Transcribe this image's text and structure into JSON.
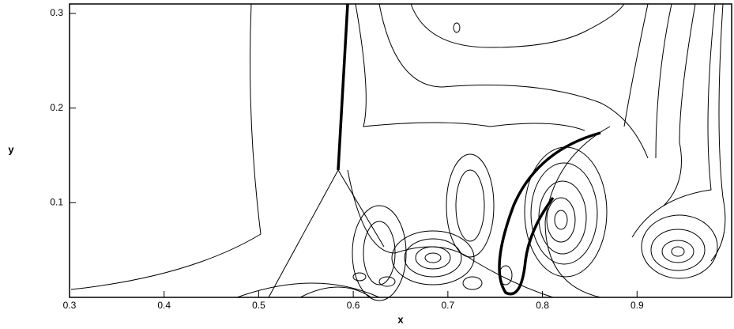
{
  "chart_data": {
    "type": "contour",
    "x_label": "x",
    "y_label": "y",
    "xlim": [
      0.3,
      1.0
    ],
    "ylim": [
      0,
      0.31
    ],
    "xticks": [
      0.3,
      0.4,
      0.5,
      0.6,
      0.7,
      0.8,
      0.9
    ],
    "yticks": [
      0.1,
      0.2,
      0.3
    ],
    "color": "#000000"
  }
}
